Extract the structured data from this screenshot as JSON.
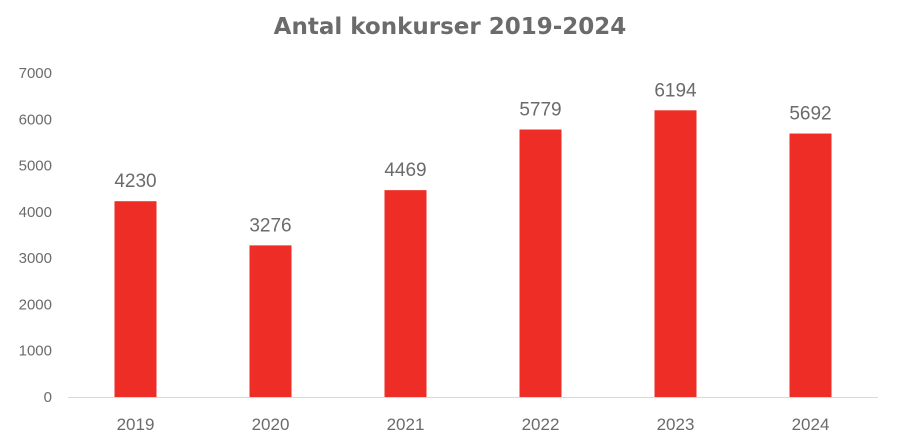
{
  "chart_data": {
    "type": "bar",
    "title": "Antal konkurser 2019-2024",
    "xlabel": "",
    "ylabel": "",
    "categories": [
      "2019",
      "2020",
      "2021",
      "2022",
      "2023",
      "2024"
    ],
    "values": [
      4230,
      3276,
      4469,
      5779,
      6194,
      5692
    ],
    "ylim": [
      0,
      7000
    ],
    "yticks": [
      "0",
      "1000",
      "2000",
      "3000",
      "4000",
      "5000",
      "6000",
      "7000"
    ],
    "grid": false,
    "legend": "none",
    "data_labels": true,
    "colors": {
      "bar": "#ee2d27",
      "text": "#6b6b6b",
      "axis": "#d9d9d9"
    }
  }
}
